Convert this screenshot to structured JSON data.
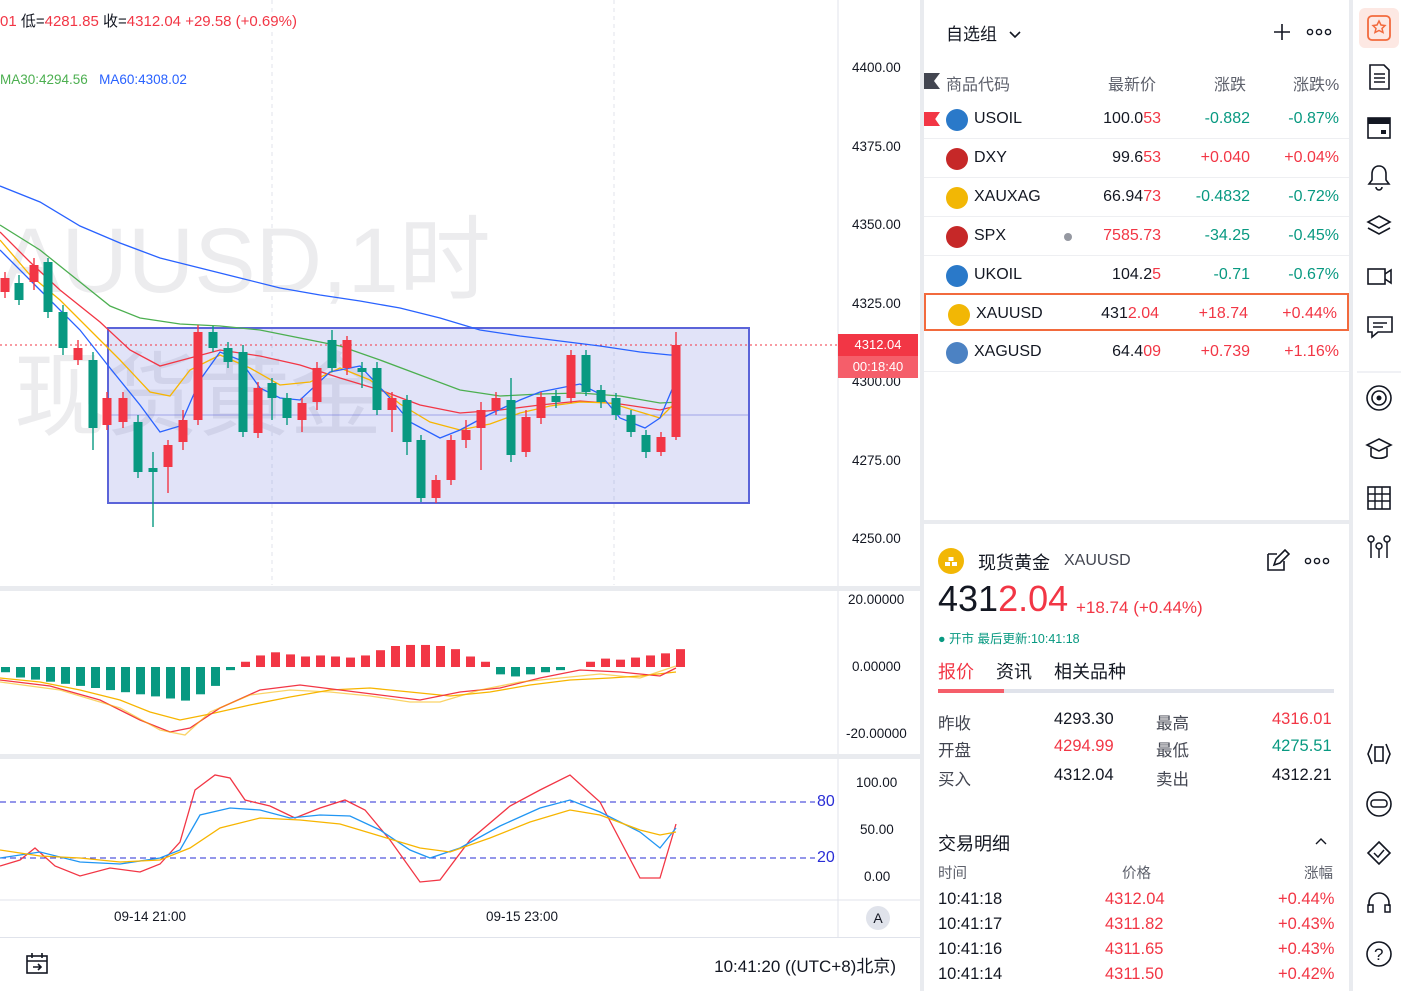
{
  "chart": {
    "ohlc_prefix": "01",
    "low_label": "低=",
    "low_value": "4281.85",
    "close_label": "收=",
    "close_value": "4312.04",
    "change_value": "+29.58",
    "change_pct": "(+0.69%)",
    "ma30": "MA30:4294.56",
    "ma60": "MA60:4308.02",
    "watermark_line1": "AUUSD,1时",
    "watermark_line2": "现货黄金",
    "price_axis": [
      "4400.00",
      "4375.00",
      "4350.00",
      "4325.00",
      "4300.00",
      "4275.00",
      "4250.00"
    ],
    "current_price": "4312.04",
    "countdown": "00:18:40",
    "macd_axis": [
      "20.00000",
      "0.00000",
      "-20.00000"
    ],
    "kdj_axis": [
      "100.00",
      "50.00",
      "0.00"
    ],
    "kdj_level_high": "80",
    "kdj_level_low": "20",
    "time_axis": [
      "09-14 21:00",
      "09-15 23:00"
    ],
    "auto_label": "A",
    "clock": "10:41:20 ((UTC+8)北京)"
  },
  "colors": {
    "up": "#f23645",
    "down": "#089981",
    "ma_blue": "#2962ff",
    "ma_red": "#f23645",
    "ma_yellow": "#f7b500",
    "ma_green": "#4caf50",
    "selection": "#5b64d9"
  },
  "watchlist": {
    "title": "自选组",
    "columns": [
      "商品代码",
      "最新价",
      "涨跌",
      "涨跌%"
    ],
    "rows": [
      {
        "symbol": "USOIL",
        "last_a": "100.0",
        "last_b": "53",
        "chg": "-0.882",
        "pct": "-0.87%",
        "dir": "down",
        "icon": "oil-icon"
      },
      {
        "symbol": "DXY",
        "last_a": "99.6",
        "last_b": "53",
        "chg": "+0.040",
        "pct": "+0.04%",
        "dir": "up",
        "icon": "us-flag-icon"
      },
      {
        "symbol": "XAUXAG",
        "last_a": "66.94",
        "last_b": "73",
        "chg": "-0.4832",
        "pct": "-0.72%",
        "dir": "down",
        "icon": "gold-silver-icon"
      },
      {
        "symbol": "SPX",
        "last_a": "",
        "last_b": "7585.73",
        "chg": "-34.25",
        "pct": "-0.45%",
        "dir": "down",
        "icon": "us-flag-icon"
      },
      {
        "symbol": "UKOIL",
        "last_a": "104.2",
        "last_b": "5",
        "chg": "-0.71",
        "pct": "-0.67%",
        "dir": "down",
        "icon": "oil-icon"
      },
      {
        "symbol": "XAUUSD",
        "last_a": "431",
        "last_b": "2.04",
        "chg": "+18.74",
        "pct": "+0.44%",
        "dir": "up",
        "icon": "gold-icon"
      },
      {
        "symbol": "XAGUSD",
        "last_a": "64.4",
        "last_b": "09",
        "chg": "+0.739",
        "pct": "+1.16%",
        "dir": "up",
        "icon": "silver-icon"
      }
    ]
  },
  "detail": {
    "name": "现货黄金",
    "code": "XAUUSD",
    "price_a": "431",
    "price_b": "2.04",
    "change": "+18.74",
    "change_pct": "(+0.44%)",
    "status": "● 开市 最后更新:10:41:18",
    "tabs": [
      "报价",
      "资讯",
      "相关品种"
    ],
    "stats": [
      {
        "label": "昨收",
        "value": "4293.30",
        "label2": "最高",
        "value2": "4316.01"
      },
      {
        "label": "开盘",
        "value": "4294.99",
        "label2": "最低",
        "value2": "4275.51"
      },
      {
        "label": "买入",
        "value": "4312.04",
        "label2": "卖出",
        "value2": "4312.21"
      }
    ],
    "trades_title": "交易明细",
    "trades_cols": [
      "时间",
      "价格",
      "涨幅"
    ],
    "trades": [
      {
        "time": "10:41:18",
        "price": "4312.04",
        "pct": "+0.44%"
      },
      {
        "time": "10:41:17",
        "price": "4311.82",
        "pct": "+0.43%"
      },
      {
        "time": "10:41:16",
        "price": "4311.65",
        "pct": "+0.43%"
      },
      {
        "time": "10:41:14",
        "price": "4311.50",
        "pct": "+0.42%"
      }
    ]
  },
  "toolbar": [
    "alerts-active-icon",
    "news-icon",
    "calendar-icon",
    "bell-icon",
    "layers-icon",
    "video-icon",
    "chat-icon",
    "target-icon",
    "education-icon",
    "grid-icon",
    "network-icon",
    "ruler-icon",
    "robot-icon",
    "exchange-icon",
    "headset-icon",
    "help-icon"
  ]
}
